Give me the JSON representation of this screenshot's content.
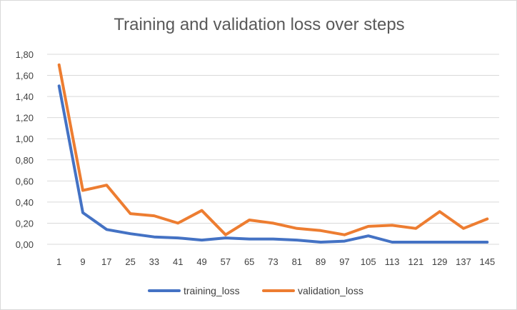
{
  "chart_data": {
    "type": "line",
    "title": "Training and validation loss over steps",
    "xlabel": "",
    "ylabel": "",
    "categories": [
      "1",
      "9",
      "17",
      "25",
      "33",
      "41",
      "49",
      "57",
      "65",
      "73",
      "81",
      "89",
      "97",
      "105",
      "113",
      "121",
      "129",
      "137",
      "145"
    ],
    "ylim": [
      0,
      1.8
    ],
    "yticks": [
      0,
      0.2,
      0.4,
      0.6,
      0.8,
      1.0,
      1.2,
      1.4,
      1.6,
      1.8
    ],
    "ytick_labels": [
      "0,00",
      "0,20",
      "0,40",
      "0,60",
      "0,80",
      "1,00",
      "1,20",
      "1,40",
      "1,60",
      "1,80"
    ],
    "grid": true,
    "legend_position": "bottom",
    "series": [
      {
        "name": "training_loss",
        "color": "#4472C4",
        "values": [
          1.5,
          0.3,
          0.14,
          0.1,
          0.07,
          0.06,
          0.04,
          0.06,
          0.05,
          0.05,
          0.04,
          0.02,
          0.03,
          0.08,
          0.02,
          0.02,
          0.02,
          0.02,
          0.02
        ]
      },
      {
        "name": "validation_loss",
        "color": "#ED7D31",
        "values": [
          1.7,
          0.51,
          0.56,
          0.29,
          0.27,
          0.2,
          0.32,
          0.09,
          0.23,
          0.2,
          0.15,
          0.13,
          0.09,
          0.17,
          0.18,
          0.15,
          0.31,
          0.15,
          0.24
        ]
      }
    ]
  }
}
